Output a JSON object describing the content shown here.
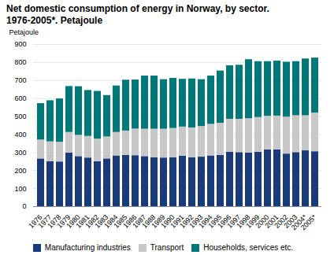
{
  "chart_data": {
    "type": "bar",
    "stacked": true,
    "title": "Net domestic consumption of energy in Norway, by sector.",
    "subtitle": "1976-2005*. Petajoule",
    "y_label": "Petajoule",
    "categories": [
      "1976",
      "1977",
      "1978",
      "1979",
      "1980",
      "1981",
      "1982",
      "1983",
      "1984",
      "1985",
      "1986",
      "1987",
      "1988",
      "1989",
      "1990",
      "1991",
      "1992",
      "1993",
      "1994",
      "1995",
      "1996",
      "1997",
      "1998",
      "1999",
      "2000",
      "2001",
      "2002",
      "2003",
      "2004*",
      "2005*"
    ],
    "series": [
      {
        "name": "Manufacturing industries",
        "color": "#1a3a7a",
        "values": [
          265,
          250,
          248,
          297,
          278,
          270,
          250,
          265,
          282,
          285,
          283,
          278,
          272,
          270,
          272,
          280,
          272,
          275,
          282,
          285,
          303,
          300,
          298,
          302,
          315,
          315,
          292,
          300,
          310,
          305
        ]
      },
      {
        "name": "Transport",
        "color": "#c8c8c8",
        "values": [
          105,
          110,
          110,
          115,
          118,
          120,
          125,
          122,
          130,
          135,
          148,
          152,
          158,
          160,
          162,
          162,
          165,
          170,
          175,
          178,
          182,
          185,
          190,
          193,
          187,
          188,
          205,
          205,
          195,
          215
        ]
      },
      {
        "name": "Households, services etc.",
        "color": "#007878",
        "values": [
          202,
          228,
          240,
          255,
          270,
          255,
          265,
          230,
          258,
          282,
          272,
          295,
          295,
          275,
          278,
          265,
          272,
          260,
          268,
          290,
          297,
          300,
          328,
          310,
          303,
          305,
          305,
          300,
          315,
          305
        ]
      }
    ],
    "ylim": [
      0,
      900
    ],
    "yticks": [
      0,
      100,
      200,
      300,
      400,
      500,
      600,
      700,
      800,
      900
    ],
    "grid": true,
    "legend": "bottom"
  }
}
